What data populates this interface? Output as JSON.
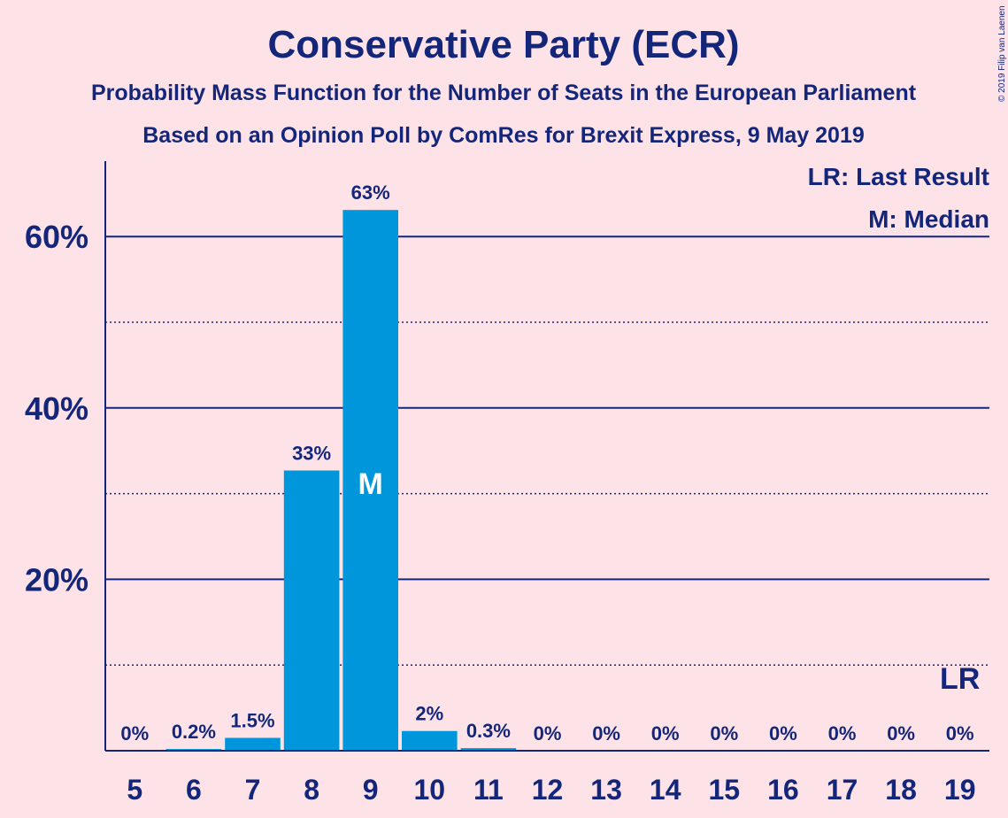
{
  "title": "Conservative Party (ECR)",
  "subtitle1": "Probability Mass Function for the Number of Seats in the European Parliament",
  "subtitle2": "Based on an Opinion Poll by ComRes for Brexit Express, 9 May 2019",
  "copyright": "© 2019 Filip van Laenen",
  "legend": {
    "last_result": "LR: Last Result",
    "median": "M: Median"
  },
  "colors": {
    "background": "#fde3e7",
    "bar": "#0096dc",
    "text": "#14267a"
  },
  "chart_data": {
    "type": "bar",
    "categories": [
      "5",
      "6",
      "7",
      "8",
      "9",
      "10",
      "11",
      "12",
      "13",
      "14",
      "15",
      "16",
      "17",
      "18",
      "19"
    ],
    "values": [
      0,
      0.2,
      1.5,
      32.7,
      63.1,
      2.3,
      0.3,
      0,
      0,
      0,
      0,
      0,
      0,
      0,
      0
    ],
    "data_labels": [
      "0%",
      "0.2%",
      "1.5%",
      "33%",
      "63%",
      "2%",
      "0.3%",
      "0%",
      "0%",
      "0%",
      "0%",
      "0%",
      "0%",
      "0%",
      "0%"
    ],
    "ylim": [
      0,
      68
    ],
    "yticks": [
      {
        "value": 20,
        "label": "20%"
      },
      {
        "value": 40,
        "label": "40%"
      },
      {
        "value": 60,
        "label": "60%"
      }
    ],
    "minor_gridlines": [
      10,
      30,
      50
    ],
    "median_seat": "9",
    "median_marker": "M",
    "last_result_seat": "19",
    "last_result_marker": "LR",
    "legend_position": "top-right",
    "grid": true
  }
}
